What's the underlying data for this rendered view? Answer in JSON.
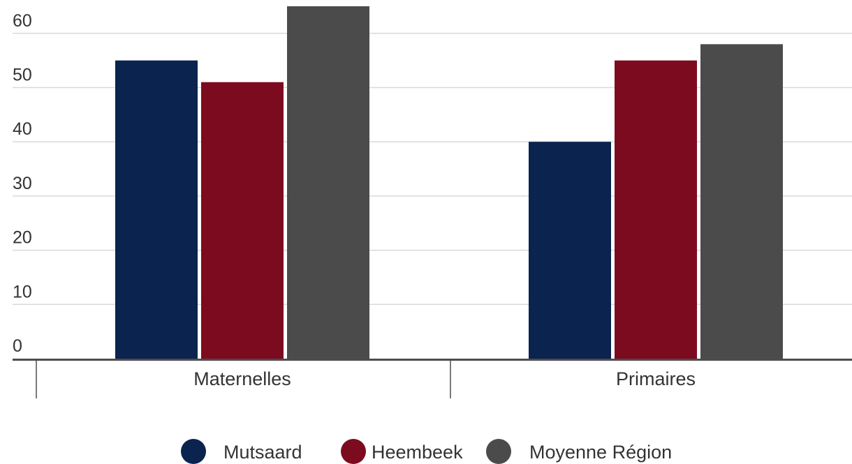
{
  "chart_data": {
    "type": "bar",
    "categories": [
      "Maternelles",
      "Primaires"
    ],
    "series": [
      {
        "name": "Mutsaard",
        "color": "#0a234f",
        "values": [
          55,
          40
        ]
      },
      {
        "name": "Heembeek",
        "color": "#7d0b20",
        "values": [
          51,
          55
        ]
      },
      {
        "name": "Moyenne Région",
        "color": "#4b4b4b",
        "values": [
          65,
          58
        ]
      }
    ],
    "yticks": [
      0,
      10,
      20,
      30,
      40,
      50,
      60
    ],
    "ylim": [
      0,
      65
    ],
    "grid": true,
    "legend_position": "bottom",
    "title": "",
    "xlabel": "",
    "ylabel": ""
  }
}
